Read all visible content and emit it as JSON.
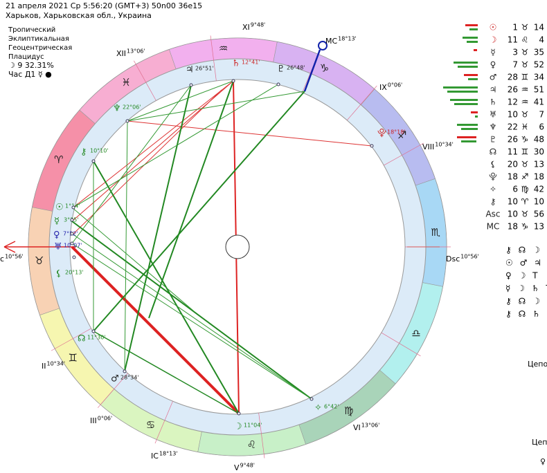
{
  "header": {
    "line1": "21 апреля 2021  Ср   5:56:20 (GMT+3) 50n00  36e15",
    "line2": "Харьков, Харьковская обл., Украина"
  },
  "info": {
    "lines": [
      "Тропический",
      "Эклиптикальная",
      "Геоцентрическая",
      "Плацидус"
    ],
    "moon": "☽  9 32.31%",
    "hour": "Час Д1 ☿ ●"
  },
  "zodiac": [
    "♈",
    "♉",
    "♊",
    "♋",
    "♌",
    "♍",
    "♎",
    "♏",
    "♐",
    "♑",
    "♒",
    "♓"
  ],
  "houses": [
    {
      "numeral": "XI",
      "degree": "9°48'"
    },
    {
      "numeral": "XII",
      "degree": "13°06'"
    },
    {
      "numeral": "MC",
      "degree": "18°13'"
    },
    {
      "numeral": "IX",
      "degree": "0°06'"
    },
    {
      "numeral": "VIII",
      "degree": "10°34'"
    },
    {
      "numeral": "Dsc",
      "degree": "10°56'"
    },
    {
      "numeral": "c",
      "degree": "10°56'"
    },
    {
      "numeral": "II",
      "degree": "10°34'"
    },
    {
      "numeral": "III",
      "degree": "0°06'"
    },
    {
      "numeral": "IC",
      "degree": "18°13'"
    },
    {
      "numeral": "V",
      "degree": "9°48'"
    },
    {
      "numeral": "VI",
      "degree": "13°06'"
    }
  ],
  "wheel_planets": [
    {
      "glyph": "♃",
      "degree": "26°51'"
    },
    {
      "glyph": "♄",
      "degree": "12°41'"
    },
    {
      "glyph": "♇",
      "degree": "26°48'"
    },
    {
      "glyph": "♆",
      "degree": "22°06'"
    },
    {
      "glyph": "⯓",
      "degree": "18°18'"
    },
    {
      "glyph": "⚷",
      "degree": "10°10'"
    },
    {
      "glyph": "☉",
      "degree": "1°14'"
    },
    {
      "glyph": "☿",
      "degree": "3°35'"
    },
    {
      "glyph": "♀",
      "degree": "7°52'"
    },
    {
      "glyph": "♅",
      "degree": "10°07'"
    },
    {
      "glyph": "⚸",
      "degree": "20°13'"
    },
    {
      "glyph": "☊",
      "degree": "11°30'"
    },
    {
      "glyph": "♂",
      "degree": "28°34'"
    },
    {
      "glyph": "☽",
      "degree": "11°04'"
    },
    {
      "glyph": "✧",
      "degree": "6°42'"
    }
  ],
  "positions": [
    {
      "planet": "☉",
      "deg": "1",
      "sign": "♉",
      "min": "14"
    },
    {
      "planet": "☽",
      "deg": "11",
      "sign": "♌",
      "min": "4"
    },
    {
      "planet": "☿",
      "deg": "3",
      "sign": "♉",
      "min": "35"
    },
    {
      "planet": "♀",
      "deg": "7",
      "sign": "♉",
      "min": "52"
    },
    {
      "planet": "♂",
      "deg": "28",
      "sign": "♊",
      "min": "34"
    },
    {
      "planet": "♃",
      "deg": "26",
      "sign": "♒",
      "min": "51"
    },
    {
      "planet": "♄",
      "deg": "12",
      "sign": "♒",
      "min": "41"
    },
    {
      "planet": "♅",
      "deg": "10",
      "sign": "♉",
      "min": "7"
    },
    {
      "planet": "♆",
      "deg": "22",
      "sign": "♓",
      "min": "6"
    },
    {
      "planet": "♇",
      "deg": "26",
      "sign": "♑",
      "min": "48"
    },
    {
      "planet": "☊",
      "deg": "11",
      "sign": "♊",
      "min": "30"
    },
    {
      "planet": "⚸",
      "deg": "20",
      "sign": "♉",
      "min": "13"
    },
    {
      "planet": "⯓",
      "deg": "18",
      "sign": "♐",
      "min": "18"
    },
    {
      "planet": "✧",
      "deg": "6",
      "sign": "♍",
      "min": "42"
    },
    {
      "planet": "⚷",
      "deg": "10",
      "sign": "♈",
      "min": "10"
    },
    {
      "planet": "Asc",
      "deg": "10",
      "sign": "♉",
      "min": "56"
    },
    {
      "planet": "MC",
      "deg": "18",
      "sign": "♑",
      "min": "13"
    }
  ],
  "aspect_grid": [
    "⚷ ☊ ☽ ♄",
    "☉ ♂ ♃ Е",
    "♀ ☽ Т",
    "☿ ☽ ♄ Т",
    "⚷ ☊ ☽ Е",
    "⚷ ☊ ♄ Е"
  ],
  "notes": [
    "Цепо",
    "Цеп",
    "♀"
  ]
}
